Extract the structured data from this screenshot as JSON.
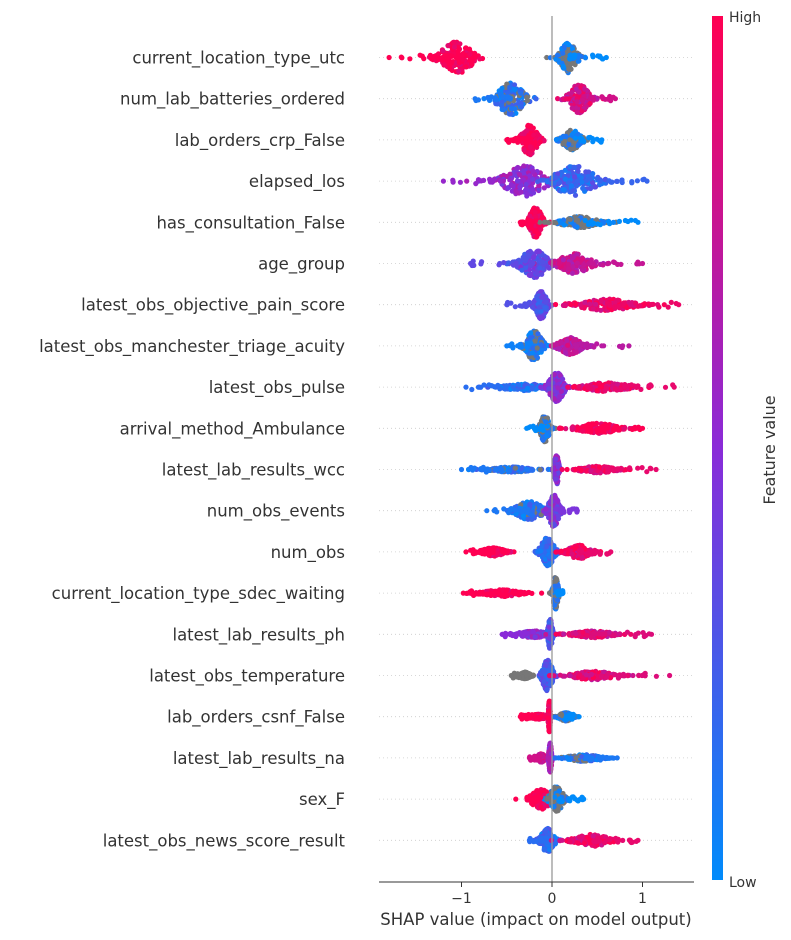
{
  "chart_data": {
    "type": "scatter",
    "subtype": "shap-beeswarm",
    "xlabel": "SHAP value (impact on model output)",
    "xlim": [
      -1.9,
      1.55
    ],
    "xticks": [
      {
        "value": -1,
        "label": "−1"
      },
      {
        "value": 0,
        "label": "0"
      },
      {
        "value": 1,
        "label": "1"
      }
    ],
    "zero_line": true,
    "colorbar": {
      "label": "Feature value",
      "high_label": "High",
      "low_label": "Low",
      "high_color": "#ff0052",
      "mid_color": "#8a2bd8",
      "low_color": "#008bfb"
    },
    "features": [
      {
        "name": "current_location_type_utc",
        "min": -1.8,
        "max": 0.6,
        "clusters": [
          {
            "center": -1.05,
            "width": 0.35,
            "height": 0.95,
            "color": 1.0
          },
          {
            "center": 0.18,
            "width": 0.18,
            "height": 0.9,
            "color": 0.0
          }
        ]
      },
      {
        "name": "num_lab_batteries_ordered",
        "min": -0.85,
        "max": 0.7,
        "clusters": [
          {
            "center": -0.45,
            "width": 0.3,
            "height": 0.95,
            "color": 0.1
          },
          {
            "center": 0.3,
            "width": 0.22,
            "height": 0.85,
            "color": 0.8
          }
        ]
      },
      {
        "name": "lab_orders_crp_False",
        "min": -0.5,
        "max": 0.55,
        "clusters": [
          {
            "center": -0.25,
            "width": 0.18,
            "height": 0.9,
            "color": 1.0
          },
          {
            "center": 0.22,
            "width": 0.2,
            "height": 0.6,
            "color": 0.0
          }
        ]
      },
      {
        "name": "elapsed_los",
        "min": -1.2,
        "max": 1.05,
        "clusters": [
          {
            "center": -0.3,
            "width": 0.45,
            "height": 0.9,
            "color": 0.55
          },
          {
            "center": 0.25,
            "width": 0.45,
            "height": 0.9,
            "color": 0.2
          }
        ]
      },
      {
        "name": "has_consultation_False",
        "min": -0.35,
        "max": 0.95,
        "clusters": [
          {
            "center": -0.18,
            "width": 0.14,
            "height": 0.9,
            "color": 1.0
          },
          {
            "center": 0.3,
            "width": 0.38,
            "height": 0.35,
            "color": 0.0
          }
        ]
      },
      {
        "name": "age_group",
        "min": -0.9,
        "max": 1.0,
        "clusters": [
          {
            "center": -0.2,
            "width": 0.3,
            "height": 0.85,
            "color": 0.35
          },
          {
            "center": 0.25,
            "width": 0.35,
            "height": 0.6,
            "color": 0.75
          }
        ]
      },
      {
        "name": "latest_obs_objective_pain_score",
        "min": -0.5,
        "max": 1.4,
        "clusters": [
          {
            "center": -0.12,
            "width": 0.12,
            "height": 0.85,
            "color": 0.3
          },
          {
            "center": 0.6,
            "width": 0.6,
            "height": 0.35,
            "color": 0.92
          }
        ]
      },
      {
        "name": "latest_obs_manchester_triage_acuity",
        "min": -0.5,
        "max": 0.85,
        "clusters": [
          {
            "center": -0.2,
            "width": 0.18,
            "height": 0.9,
            "color": 0.05
          },
          {
            "center": 0.2,
            "width": 0.25,
            "height": 0.5,
            "color": 0.7
          }
        ]
      },
      {
        "name": "latest_obs_pulse",
        "min": -0.95,
        "max": 1.35,
        "clusters": [
          {
            "center": -0.3,
            "width": 0.45,
            "height": 0.2,
            "color": 0.15
          },
          {
            "center": 0.05,
            "width": 0.16,
            "height": 0.9,
            "color": 0.5
          },
          {
            "center": 0.6,
            "width": 0.55,
            "height": 0.25,
            "color": 0.9
          }
        ]
      },
      {
        "name": "arrival_method_Ambulance",
        "min": -0.28,
        "max": 1.0,
        "clusters": [
          {
            "center": -0.08,
            "width": 0.1,
            "height": 0.8,
            "color": 0.0
          },
          {
            "center": 0.5,
            "width": 0.45,
            "height": 0.3,
            "color": 1.0
          }
        ]
      },
      {
        "name": "latest_lab_results_wcc",
        "min": -1.0,
        "max": 1.15,
        "clusters": [
          {
            "center": -0.45,
            "width": 0.45,
            "height": 0.15,
            "color": 0.1
          },
          {
            "center": 0.05,
            "width": 0.05,
            "height": 0.9,
            "color": 0.5
          },
          {
            "center": 0.5,
            "width": 0.4,
            "height": 0.2,
            "color": 0.9
          }
        ]
      },
      {
        "name": "num_obs_events",
        "min": -0.72,
        "max": 0.28,
        "clusters": [
          {
            "center": -0.25,
            "width": 0.3,
            "height": 0.55,
            "color": 0.1
          },
          {
            "center": 0.02,
            "width": 0.12,
            "height": 0.95,
            "color": 0.45
          }
        ]
      },
      {
        "name": "num_obs",
        "min": -0.95,
        "max": 0.65,
        "clusters": [
          {
            "center": -0.65,
            "width": 0.25,
            "height": 0.25,
            "color": 1.0
          },
          {
            "center": -0.05,
            "width": 0.15,
            "height": 0.85,
            "color": 0.2
          },
          {
            "center": 0.3,
            "width": 0.25,
            "height": 0.4,
            "color": 0.9
          }
        ]
      },
      {
        "name": "current_location_type_sdec_waiting",
        "min": -0.98,
        "max": 0.12,
        "clusters": [
          {
            "center": -0.55,
            "width": 0.42,
            "height": 0.2,
            "color": 1.0
          },
          {
            "center": 0.04,
            "width": 0.06,
            "height": 0.95,
            "color": 0.0
          }
        ]
      },
      {
        "name": "latest_lab_results_ph",
        "min": -0.55,
        "max": 1.1,
        "clusters": [
          {
            "center": -0.2,
            "width": 0.3,
            "height": 0.2,
            "color": 0.5
          },
          {
            "center": -0.02,
            "width": 0.05,
            "height": 0.9,
            "color": 0.3
          },
          {
            "center": 0.45,
            "width": 0.45,
            "height": 0.2,
            "color": 0.85
          }
        ]
      },
      {
        "name": "latest_obs_temperature",
        "min": -0.45,
        "max": 1.3,
        "clusters": [
          {
            "center": -0.3,
            "width": 0.12,
            "height": 0.2,
            "color": -1
          },
          {
            "center": -0.05,
            "width": 0.12,
            "height": 0.9,
            "color": 0.25
          },
          {
            "center": 0.45,
            "width": 0.45,
            "height": 0.25,
            "color": 0.85
          }
        ]
      },
      {
        "name": "lab_orders_csnf_False",
        "min": -0.35,
        "max": 0.3,
        "clusters": [
          {
            "center": -0.15,
            "width": 0.18,
            "height": 0.15,
            "color": 1.0
          },
          {
            "center": -0.03,
            "width": 0.02,
            "height": 0.95,
            "color": 1.0
          },
          {
            "center": 0.15,
            "width": 0.15,
            "height": 0.25,
            "color": 0.0
          }
        ]
      },
      {
        "name": "latest_lab_results_na",
        "min": -0.25,
        "max": 0.72,
        "clusters": [
          {
            "center": -0.12,
            "width": 0.1,
            "height": 0.25,
            "color": 0.8
          },
          {
            "center": -0.02,
            "width": 0.03,
            "height": 0.9,
            "color": 0.6
          },
          {
            "center": 0.35,
            "width": 0.35,
            "height": 0.2,
            "color": 0.1
          }
        ]
      },
      {
        "name": "sex_F",
        "min": -0.4,
        "max": 0.35,
        "clusters": [
          {
            "center": -0.12,
            "width": 0.22,
            "height": 0.6,
            "color": 1.0
          },
          {
            "center": 0.05,
            "width": 0.15,
            "height": 0.75,
            "color": 0.0
          }
        ]
      },
      {
        "name": "latest_obs_news_score_result",
        "min": -0.25,
        "max": 0.95,
        "clusters": [
          {
            "center": -0.05,
            "width": 0.15,
            "height": 0.7,
            "color": 0.15
          },
          {
            "center": 0.45,
            "width": 0.4,
            "height": 0.35,
            "color": 0.9
          }
        ]
      }
    ]
  }
}
